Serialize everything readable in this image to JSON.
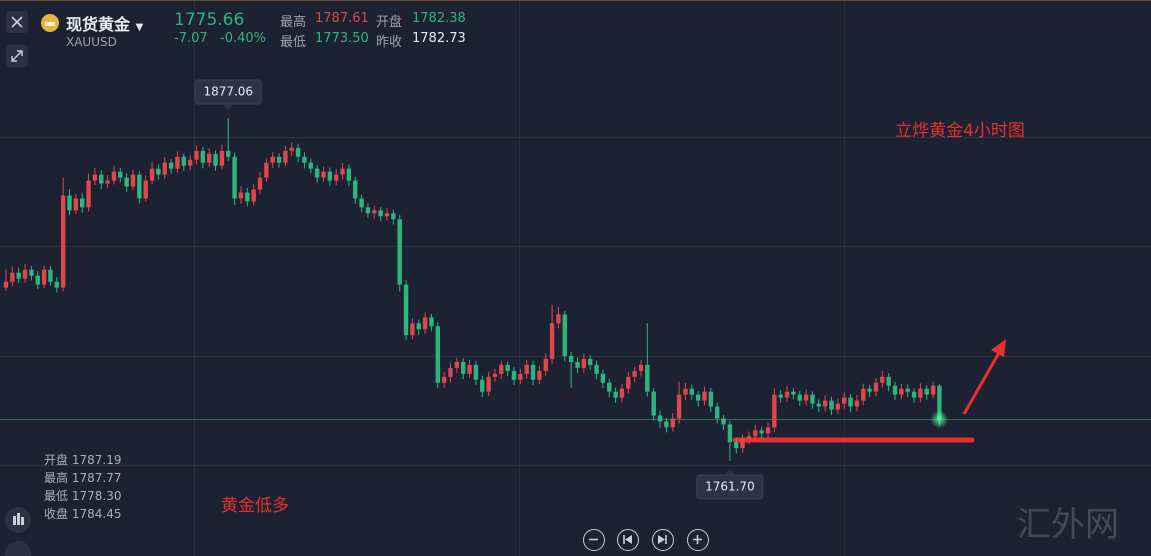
{
  "header": {
    "name": "现货黄金",
    "symbol": "XAUUSD",
    "price": "1775.66",
    "change": "-7.07",
    "change_pct": "-0.40%",
    "high_label": "最高",
    "high": "1787.61",
    "open_label": "开盘",
    "open": "1782.38",
    "low_label": "最低",
    "low": "1773.50",
    "prev_close_label": "昨收",
    "prev_close": "1782.73"
  },
  "ohlc_legend": {
    "open_label": "开盘",
    "open": "1787.19",
    "high_label": "最高",
    "high": "1787.77",
    "low_label": "最低",
    "low": "1778.30",
    "close_label": "收盘",
    "close": "1784.45"
  },
  "watermark": "汇外网",
  "chart_data": {
    "type": "candlestick",
    "title": "立烨黄金4小时图",
    "annotation": "黄金低多",
    "up_color": "#e0474d",
    "down_color": "#2db57f",
    "ylim": [
      1729.4,
      1916.4
    ],
    "max_label": "1877.06",
    "min_label": "1761.70",
    "ohlc": [
      [
        1820,
        1826.2,
        1818.9,
        1822
      ],
      [
        1822,
        1827.1,
        1820.4,
        1825
      ],
      [
        1825,
        1826.8,
        1821.5,
        1823
      ],
      [
        1823,
        1828.0,
        1821.7,
        1826
      ],
      [
        1826,
        1827.3,
        1822.4,
        1824
      ],
      [
        1824,
        1825.6,
        1819.5,
        1821
      ],
      [
        1821,
        1827.4,
        1819.8,
        1826
      ],
      [
        1826,
        1827.2,
        1820.6,
        1822
      ],
      [
        1822,
        1823.5,
        1818.4,
        1820
      ],
      [
        1820,
        1857.0,
        1818.8,
        1851
      ],
      [
        1851,
        1853.1,
        1844.4,
        1846
      ],
      [
        1846,
        1851.6,
        1844.8,
        1850
      ],
      [
        1850,
        1851.9,
        1845.2,
        1847
      ],
      [
        1847,
        1858.3,
        1845.6,
        1856
      ],
      [
        1856,
        1860.2,
        1854.5,
        1858
      ],
      [
        1858,
        1859.4,
        1853.1,
        1855
      ],
      [
        1855,
        1857.8,
        1853.6,
        1856
      ],
      [
        1856,
        1861.0,
        1854.7,
        1859
      ],
      [
        1859,
        1860.3,
        1855.4,
        1857
      ],
      [
        1857,
        1858.5,
        1852.2,
        1854
      ],
      [
        1854,
        1859.6,
        1852.9,
        1858
      ],
      [
        1858,
        1859.1,
        1848.3,
        1850
      ],
      [
        1850,
        1857.7,
        1848.9,
        1856
      ],
      [
        1856,
        1862.4,
        1854.8,
        1860
      ],
      [
        1860,
        1861.5,
        1856.3,
        1858
      ],
      [
        1858,
        1863.9,
        1856.6,
        1862
      ],
      [
        1862,
        1863.2,
        1858.4,
        1860
      ],
      [
        1860,
        1865.8,
        1858.7,
        1864
      ],
      [
        1864,
        1865.1,
        1859.2,
        1861
      ],
      [
        1861,
        1864.6,
        1859.5,
        1863
      ],
      [
        1863,
        1867.9,
        1861.4,
        1866
      ],
      [
        1866,
        1867.3,
        1860.1,
        1862
      ],
      [
        1862,
        1866.8,
        1860.6,
        1865
      ],
      [
        1865,
        1866.2,
        1859.3,
        1861
      ],
      [
        1861,
        1868.1,
        1859.8,
        1866
      ],
      [
        1866,
        1877.06,
        1862.5,
        1864
      ],
      [
        1864,
        1865.4,
        1847.8,
        1850
      ],
      [
        1850,
        1854.1,
        1848.2,
        1852
      ],
      [
        1852,
        1853.6,
        1847.3,
        1849
      ],
      [
        1849,
        1854.8,
        1847.7,
        1853
      ],
      [
        1853,
        1858.9,
        1851.4,
        1857
      ],
      [
        1857,
        1863.5,
        1855.6,
        1862
      ],
      [
        1862,
        1865.7,
        1860.3,
        1864
      ],
      [
        1864,
        1865.2,
        1860.4,
        1862
      ],
      [
        1862,
        1867.6,
        1860.8,
        1866
      ],
      [
        1866,
        1868.9,
        1864.3,
        1867
      ],
      [
        1867,
        1868.4,
        1862.2,
        1864
      ],
      [
        1864,
        1865.5,
        1860.1,
        1862
      ],
      [
        1862,
        1863.3,
        1858.4,
        1860
      ],
      [
        1860,
        1861.2,
        1855.3,
        1857
      ],
      [
        1857,
        1860.7,
        1855.6,
        1859
      ],
      [
        1859,
        1860.4,
        1854.2,
        1856
      ],
      [
        1856,
        1859.8,
        1854.5,
        1858
      ],
      [
        1858,
        1861.9,
        1856.3,
        1860
      ],
      [
        1860,
        1861.4,
        1854.1,
        1856
      ],
      [
        1856,
        1857.3,
        1848.2,
        1850
      ],
      [
        1850,
        1851.2,
        1845.3,
        1847
      ],
      [
        1847,
        1848.4,
        1843.5,
        1845
      ],
      [
        1845,
        1847.6,
        1843.2,
        1846
      ],
      [
        1846,
        1847.1,
        1842.3,
        1844
      ],
      [
        1844,
        1846.7,
        1842.6,
        1845
      ],
      [
        1845,
        1846.3,
        1841.2,
        1843
      ],
      [
        1843,
        1844.5,
        1818.7,
        1821
      ],
      [
        1821,
        1822.4,
        1802.3,
        1804
      ],
      [
        1804,
        1809.8,
        1802.6,
        1808
      ],
      [
        1808,
        1809.3,
        1804.1,
        1806
      ],
      [
        1806,
        1811.7,
        1804.4,
        1810
      ],
      [
        1810,
        1811.2,
        1805.3,
        1807
      ],
      [
        1807,
        1808.4,
        1786.2,
        1788
      ],
      [
        1788,
        1791.6,
        1786.3,
        1790
      ],
      [
        1790,
        1794.8,
        1788.1,
        1793
      ],
      [
        1793,
        1796.5,
        1791.4,
        1795
      ],
      [
        1795,
        1796.3,
        1789.2,
        1791
      ],
      [
        1791,
        1795.7,
        1789.6,
        1794
      ],
      [
        1794,
        1795.2,
        1787.3,
        1789
      ],
      [
        1789,
        1790.4,
        1783.2,
        1785
      ],
      [
        1785,
        1791.6,
        1783.5,
        1790
      ],
      [
        1790,
        1792.7,
        1788.4,
        1791
      ],
      [
        1791,
        1795.4,
        1789.3,
        1794
      ],
      [
        1794,
        1795.1,
        1790.2,
        1792
      ],
      [
        1792,
        1793.4,
        1787.3,
        1789
      ],
      [
        1789,
        1792.8,
        1787.5,
        1791
      ],
      [
        1791,
        1795.6,
        1789.4,
        1794
      ],
      [
        1794,
        1795.3,
        1787.2,
        1789
      ],
      [
        1789,
        1793.7,
        1787.6,
        1792
      ],
      [
        1792,
        1797.9,
        1790.3,
        1796
      ],
      [
        1796,
        1814.2,
        1794.4,
        1808
      ],
      [
        1808,
        1813.6,
        1806.3,
        1811
      ],
      [
        1811,
        1812.2,
        1795.1,
        1797
      ],
      [
        1797,
        1798.4,
        1786.3,
        1795
      ],
      [
        1795,
        1796.6,
        1791.2,
        1793
      ],
      [
        1793,
        1797.8,
        1791.4,
        1796
      ],
      [
        1796,
        1797.2,
        1792.3,
        1794
      ],
      [
        1794,
        1795.5,
        1789.1,
        1791
      ],
      [
        1791,
        1792.4,
        1786.2,
        1788
      ],
      [
        1788,
        1789.3,
        1783.1,
        1785
      ],
      [
        1785,
        1786.4,
        1781.2,
        1783
      ],
      [
        1783,
        1787.6,
        1781.4,
        1786
      ],
      [
        1786,
        1791.7,
        1784.3,
        1790
      ],
      [
        1790,
        1793.5,
        1788.2,
        1792
      ],
      [
        1792,
        1795.6,
        1790.1,
        1794
      ],
      [
        1794,
        1808.0,
        1783.4,
        1785
      ],
      [
        1785,
        1786.3,
        1775.2,
        1777
      ],
      [
        1777,
        1778.6,
        1772.9,
        1775
      ],
      [
        1775,
        1776.2,
        1771.3,
        1773
      ],
      [
        1773,
        1777.8,
        1771.6,
        1776
      ],
      [
        1776,
        1788.4,
        1774.3,
        1784
      ],
      [
        1784,
        1787.9,
        1782.2,
        1786
      ],
      [
        1786,
        1787.4,
        1782.3,
        1784
      ],
      [
        1784,
        1785.2,
        1780.1,
        1782
      ],
      [
        1782,
        1786.7,
        1780.4,
        1785
      ],
      [
        1785,
        1786.3,
        1778.2,
        1780
      ],
      [
        1780,
        1781.4,
        1774.3,
        1776
      ],
      [
        1776,
        1777.2,
        1772.1,
        1774
      ],
      [
        1774,
        1775.3,
        1761.7,
        1768
      ],
      [
        1768,
        1769.4,
        1764.2,
        1766
      ],
      [
        1766,
        1770.7,
        1764.5,
        1769
      ],
      [
        1769,
        1771.6,
        1767.3,
        1770
      ],
      [
        1770,
        1773.8,
        1768.4,
        1772
      ],
      [
        1772,
        1773.2,
        1769.3,
        1771
      ],
      [
        1771,
        1774.7,
        1769.5,
        1773
      ],
      [
        1773,
        1786.1,
        1771.4,
        1784
      ],
      [
        1784,
        1785.6,
        1781.3,
        1783
      ],
      [
        1783,
        1786.9,
        1781.5,
        1785
      ],
      [
        1785,
        1786.2,
        1782.4,
        1784
      ],
      [
        1784,
        1785.3,
        1780.2,
        1782
      ],
      [
        1782,
        1785.8,
        1780.5,
        1784
      ],
      [
        1784,
        1785.1,
        1779.3,
        1781
      ],
      [
        1781,
        1782.4,
        1778.2,
        1780
      ],
      [
        1780,
        1783.7,
        1778.4,
        1782
      ],
      [
        1782,
        1783.3,
        1777.2,
        1779
      ],
      [
        1779,
        1782.6,
        1777.5,
        1781
      ],
      [
        1781,
        1784.8,
        1779.3,
        1783
      ],
      [
        1783,
        1784.2,
        1778.1,
        1780
      ],
      [
        1780,
        1783.9,
        1778.4,
        1782
      ],
      [
        1782,
        1787.7,
        1780.5,
        1786
      ],
      [
        1786,
        1787.3,
        1783.2,
        1785
      ],
      [
        1785,
        1789.6,
        1783.4,
        1788
      ],
      [
        1788,
        1791.9,
        1786.3,
        1790
      ],
      [
        1790,
        1791.2,
        1785.1,
        1787
      ],
      [
        1787,
        1788.3,
        1782.2,
        1784
      ],
      [
        1784,
        1787.7,
        1782.5,
        1786
      ],
      [
        1786,
        1787.4,
        1783.2,
        1785
      ],
      [
        1785,
        1786.1,
        1781.3,
        1783
      ],
      [
        1783,
        1787.8,
        1781.4,
        1786
      ],
      [
        1786,
        1787.2,
        1782.3,
        1784
      ],
      [
        1784,
        1788.4,
        1782.6,
        1787
      ],
      [
        1787,
        1787.6,
        1773.5,
        1775.66
      ]
    ]
  }
}
